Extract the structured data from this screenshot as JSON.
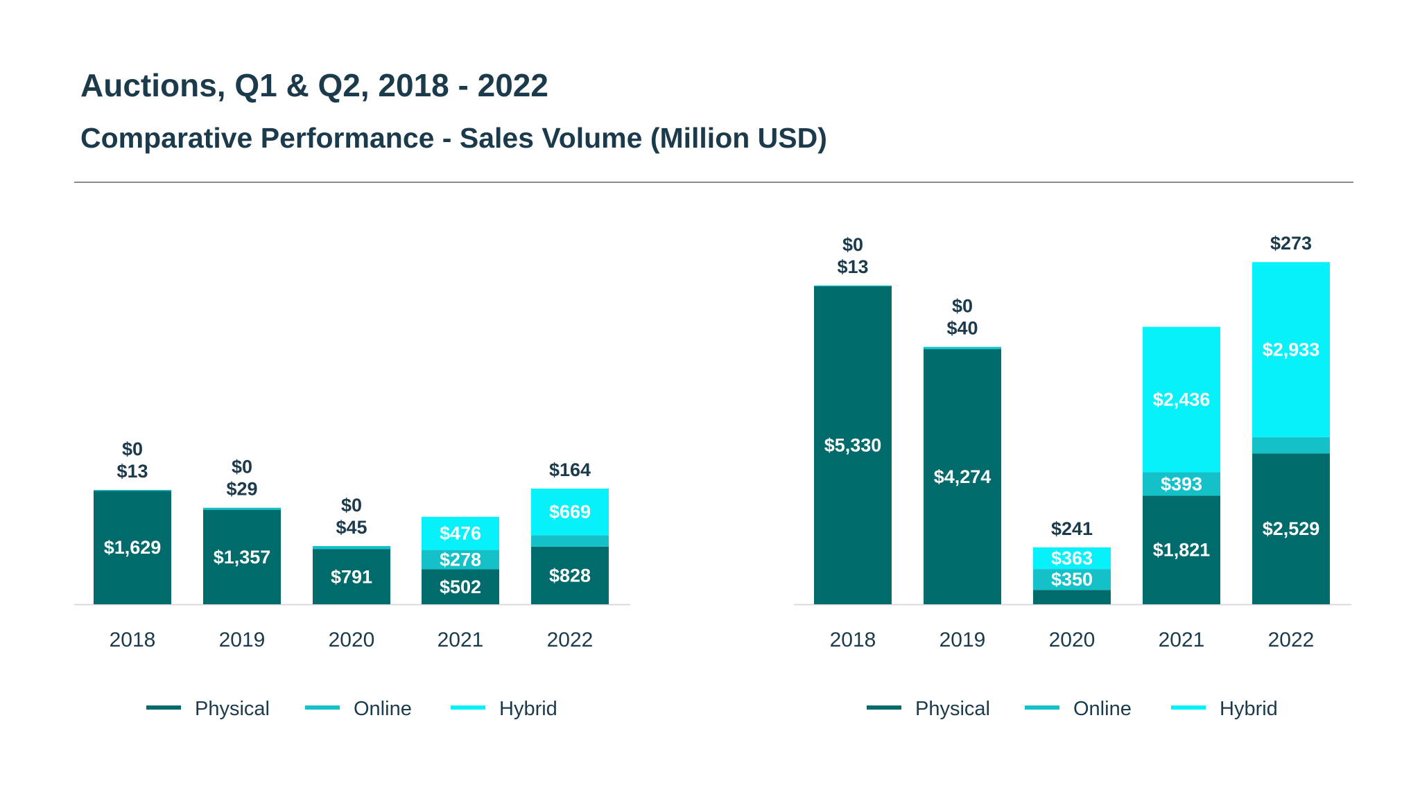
{
  "header": {
    "title": "Auctions, Q1 & Q2, 2018 - 2022",
    "subtitle": "Comparative Performance - Sales Volume (Million USD)"
  },
  "colors": {
    "Physical": "#016b6c",
    "Online": "#14c1c8",
    "Hybrid": "#07f1fb"
  },
  "chart_data": [
    {
      "type": "bar",
      "stacked": true,
      "categories": [
        "2018",
        "2019",
        "2020",
        "2021",
        "2022"
      ],
      "series": [
        {
          "name": "Physical",
          "values": [
            1629,
            1357,
            791,
            502,
            828
          ]
        },
        {
          "name": "Online",
          "values": [
            13,
            29,
            45,
            278,
            164
          ]
        },
        {
          "name": "Hybrid",
          "values": [
            0,
            0,
            0,
            476,
            669
          ]
        }
      ],
      "ylim": [
        0,
        5600
      ],
      "grid": false,
      "legend": "bottom"
    },
    {
      "type": "bar",
      "stacked": true,
      "categories": [
        "2018",
        "2019",
        "2020",
        "2021",
        "2022"
      ],
      "series": [
        {
          "name": "Physical",
          "values": [
            5330,
            4274,
            241,
            1821,
            2529
          ]
        },
        {
          "name": "Online",
          "values": [
            13,
            40,
            350,
            393,
            273
          ]
        },
        {
          "name": "Hybrid",
          "values": [
            0,
            0,
            363,
            2436,
            2933
          ]
        }
      ],
      "ylim": [
        0,
        5800
      ],
      "grid": false,
      "legend": "bottom"
    }
  ]
}
